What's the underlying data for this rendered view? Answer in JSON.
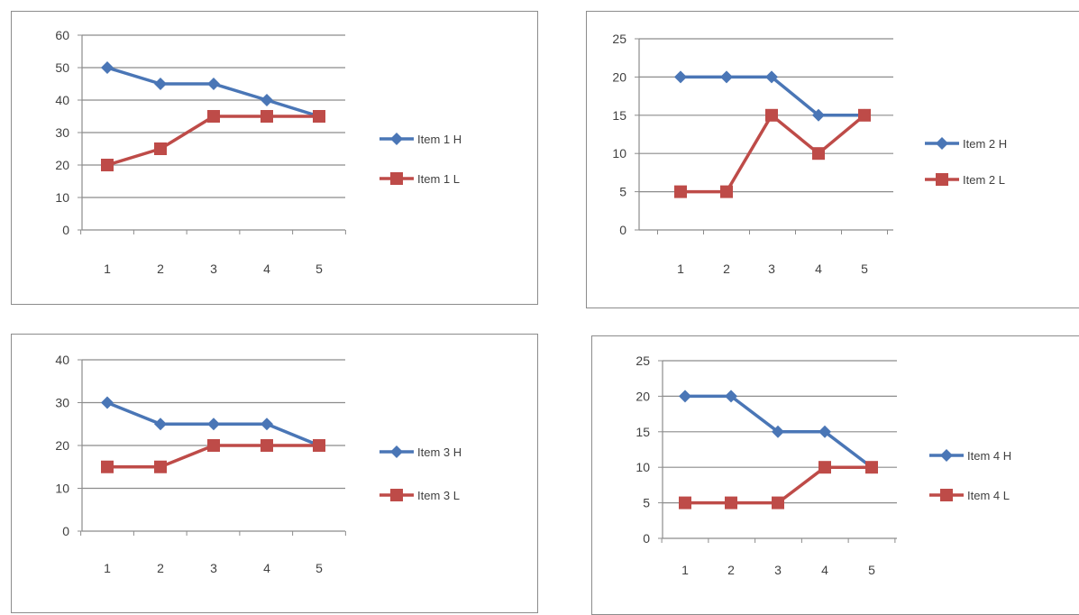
{
  "colors": {
    "high": "#4a76b6",
    "low": "#be4b48",
    "grid": "#8c8c8c",
    "axis": "#8c8c8c"
  },
  "chart_data": [
    {
      "type": "line",
      "categories": [
        "1",
        "2",
        "3",
        "4",
        "5"
      ],
      "ylim": [
        0,
        60
      ],
      "yticks": [
        "0",
        "10",
        "20",
        "30",
        "40",
        "50",
        "60"
      ],
      "grid": true,
      "legend": "right",
      "series": [
        {
          "name": "Item 1 H",
          "values": [
            50,
            45,
            45,
            40,
            35
          ]
        },
        {
          "name": "Item 1 L",
          "values": [
            20,
            25,
            35,
            35,
            35
          ]
        }
      ]
    },
    {
      "type": "line",
      "categories": [
        "1",
        "2",
        "3",
        "4",
        "5"
      ],
      "ylim": [
        0,
        25
      ],
      "yticks": [
        "0",
        "5",
        "10",
        "15",
        "20",
        "25"
      ],
      "grid": true,
      "legend": "right",
      "series": [
        {
          "name": "Item 2  H",
          "values": [
            20,
            20,
            20,
            15,
            15
          ]
        },
        {
          "name": "Item 2  L",
          "values": [
            5,
            5,
            15,
            10,
            15
          ]
        }
      ]
    },
    {
      "type": "line",
      "categories": [
        "1",
        "2",
        "3",
        "4",
        "5"
      ],
      "ylim": [
        0,
        40
      ],
      "yticks": [
        "0",
        "10",
        "20",
        "30",
        "40"
      ],
      "grid": true,
      "legend": "right",
      "series": [
        {
          "name": "Item 3  H",
          "values": [
            30,
            25,
            25,
            25,
            20
          ]
        },
        {
          "name": "Item 3  L",
          "values": [
            15,
            15,
            20,
            20,
            20
          ]
        }
      ]
    },
    {
      "type": "line",
      "categories": [
        "1",
        "2",
        "3",
        "4",
        "5"
      ],
      "ylim": [
        0,
        25
      ],
      "yticks": [
        "0",
        "5",
        "10",
        "15",
        "20",
        "25"
      ],
      "grid": true,
      "legend": "right",
      "series": [
        {
          "name": "Item 4 H",
          "values": [
            20,
            20,
            15,
            15,
            10
          ]
        },
        {
          "name": "Item 4 L",
          "values": [
            5,
            5,
            5,
            10,
            10
          ]
        }
      ]
    }
  ]
}
